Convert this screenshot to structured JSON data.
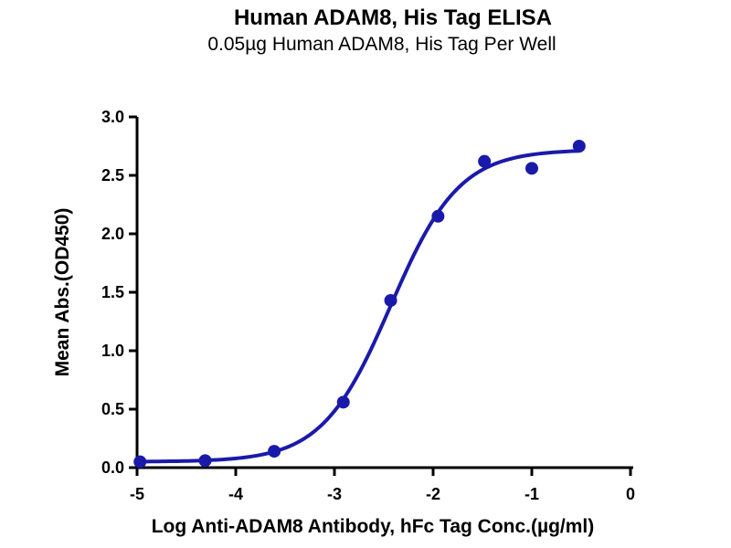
{
  "chart_data": {
    "type": "scatter",
    "title": "Human ADAM8, His Tag ELISA",
    "subtitle": "0.05µg Human ADAM8, His Tag Per Well",
    "xlabel": "Log Anti-ADAM8 Antibody, hFc Tag Conc.(µg/ml)",
    "ylabel": "Mean Abs.(OD450)",
    "xlim": [
      -5,
      0
    ],
    "ylim": [
      0,
      3
    ],
    "xtick_values": [
      -5,
      -4,
      -3,
      -2,
      -1,
      0
    ],
    "xtick_labels": [
      "-5",
      "-4",
      "-3",
      "-2",
      "-1",
      "0"
    ],
    "ytick_values": [
      0,
      0.5,
      1.0,
      1.5,
      2.0,
      2.5,
      3.0
    ],
    "ytick_labels": [
      "0.0",
      "0.5",
      "1.0",
      "1.5",
      "2.0",
      "2.5",
      "3.0"
    ],
    "grid": false,
    "legend": "none",
    "series": [
      {
        "name": "Anti-ADAM8 Antibody, hFc Tag",
        "marker": "circle",
        "color": "#1a1aaa",
        "points": {
          "x": [
            -4.97,
            -4.31,
            -3.61,
            -2.91,
            -2.43,
            -1.95,
            -1.48,
            -1.0,
            -0.52
          ],
          "y": [
            0.05,
            0.06,
            0.14,
            0.56,
            1.43,
            2.15,
            2.62,
            2.56,
            2.75
          ]
        },
        "fit_curve": {
          "model": "4PL",
          "bottom": 0.05,
          "top": 2.72,
          "logEC50": -2.43,
          "hill": 1.25,
          "x_start": -4.97,
          "x_end": -0.52
        }
      }
    ],
    "colors": {
      "series": "#1a1aaa",
      "axis": "#000000",
      "background": "#ffffff"
    }
  }
}
